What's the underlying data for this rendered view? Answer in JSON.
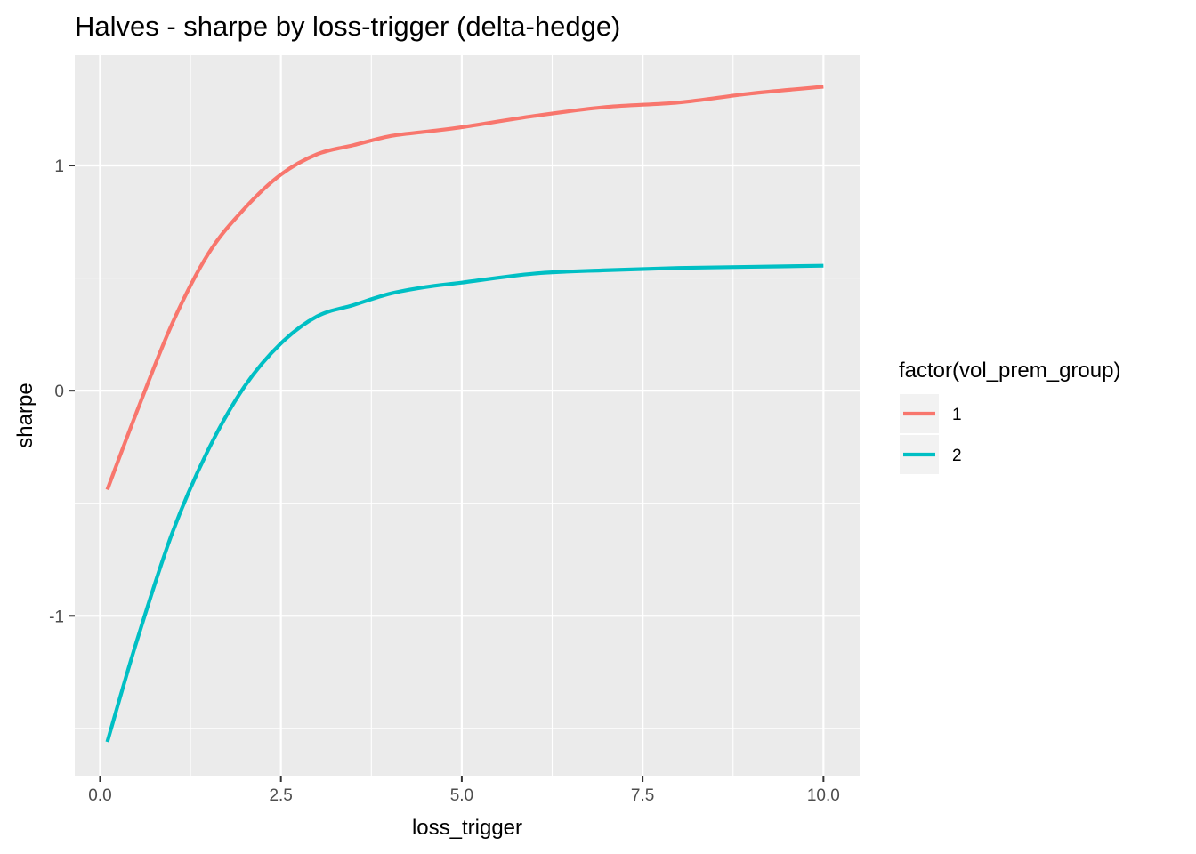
{
  "chart_data": {
    "type": "line",
    "title": "Halves - sharpe by loss-trigger (delta-hedge)",
    "xlabel": "loss_trigger",
    "ylabel": "sharpe",
    "xlim": [
      -0.35,
      10.5
    ],
    "ylim": [
      -1.71,
      1.49
    ],
    "x_ticks": [
      0.0,
      2.5,
      5.0,
      7.5,
      10.0
    ],
    "x_tick_labels": [
      "0.0",
      "2.5",
      "5.0",
      "7.5",
      "10.0"
    ],
    "y_ticks": [
      -1,
      0,
      1
    ],
    "y_tick_labels": [
      "-1",
      "0",
      "1"
    ],
    "grid": true,
    "legend": {
      "title": "factor(vol_prem_group)",
      "position": "right"
    },
    "x": [
      0.1,
      0.5,
      1.0,
      1.5,
      2.0,
      2.5,
      3.0,
      3.5,
      4.0,
      4.5,
      5.0,
      6.0,
      7.0,
      8.0,
      9.0,
      10.0
    ],
    "series": [
      {
        "name": "1",
        "color": "#F8766D",
        "values": [
          -0.44,
          -0.1,
          0.3,
          0.61,
          0.81,
          0.96,
          1.05,
          1.09,
          1.13,
          1.15,
          1.17,
          1.22,
          1.26,
          1.28,
          1.32,
          1.35
        ]
      },
      {
        "name": "2",
        "color": "#00BFC4",
        "values": [
          -1.56,
          -1.12,
          -0.63,
          -0.26,
          0.02,
          0.21,
          0.33,
          0.38,
          0.43,
          0.46,
          0.48,
          0.52,
          0.535,
          0.545,
          0.55,
          0.555
        ]
      }
    ]
  }
}
